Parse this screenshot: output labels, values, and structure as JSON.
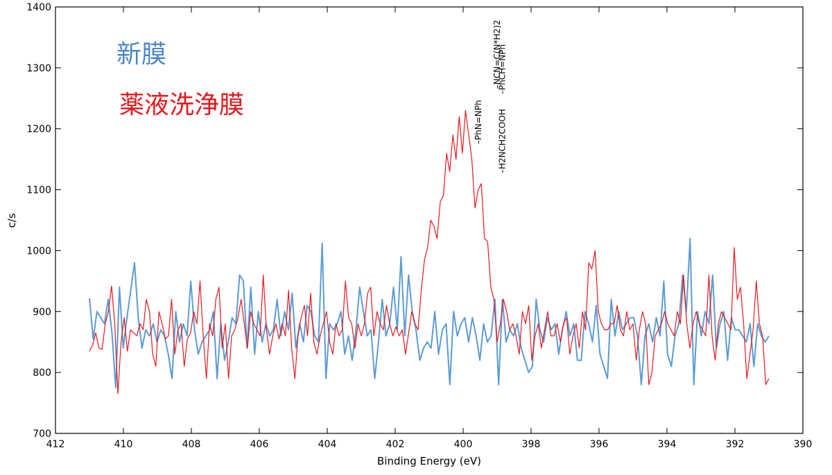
{
  "chart_data": {
    "type": "line",
    "title": "",
    "xlabel": "Binding Energy (eV)",
    "ylabel": "c/s",
    "xlim": [
      412,
      390
    ],
    "ylim": [
      700,
      1400
    ],
    "x_reversed": true,
    "xticks": [
      412,
      410,
      408,
      406,
      404,
      402,
      400,
      398,
      396,
      394,
      392,
      390
    ],
    "yticks": [
      700,
      800,
      900,
      1000,
      1100,
      1200,
      1300,
      1400
    ],
    "grid": false,
    "legend_placement": "top-left",
    "series": [
      {
        "name": "新膜",
        "color": "#5b9bd5",
        "x_start": 411,
        "x_end": 391,
        "values": [
          922,
          855,
          900,
          890,
          880,
          920,
          865,
          775,
          940,
          840,
          890,
          935,
          980,
          890,
          840,
          870,
          860,
          880,
          850,
          870,
          860,
          830,
          790,
          900,
          850,
          880,
          860,
          950,
          870,
          830,
          850,
          860,
          870,
          900,
          790,
          880,
          820,
          850,
          890,
          880,
          960,
          950,
          840,
          940,
          830,
          900,
          850,
          880,
          860,
          870,
          920,
          860,
          900,
          870,
          930,
          840,
          880,
          850,
          910,
          900,
          860,
          850,
          1012,
          790,
          880,
          870,
          880,
          900,
          830,
          860,
          820,
          870,
          940,
          900,
          860,
          870,
          790,
          850,
          920,
          860,
          880,
          940,
          870,
          990,
          860,
          960,
          900,
          870,
          820,
          840,
          850,
          840,
          900,
          830,
          870,
          880,
          780,
          900,
          860,
          880,
          890,
          850,
          890,
          860,
          820,
          880,
          850,
          860,
          920,
          780,
          920,
          850,
          870,
          860,
          880,
          840,
          820,
          800,
          810,
          920,
          870,
          850,
          890,
          870,
          880,
          830,
          870,
          900,
          860,
          880,
          820,
          820,
          900,
          880,
          850,
          910,
          830,
          810,
          790,
          920,
          860,
          900,
          870,
          880,
          890,
          890,
          860,
          780,
          860,
          880,
          850,
          890,
          860,
          950,
          830,
          810,
          860,
          880,
          960,
          900,
          1020,
          780,
          900,
          860,
          900,
          880,
          960,
          840,
          880,
          900,
          820,
          890,
          870,
          870,
          860,
          850,
          880,
          810,
          880,
          860,
          850,
          860
        ]
      },
      {
        "name": "薬液洗浄膜",
        "color": "#e8171c",
        "x_start": 411,
        "x_end": 391,
        "values": [
          835,
          845,
          865,
          840,
          838,
          880,
          900,
          942,
          880,
          765,
          850,
          890,
          835,
          870,
          865,
          860,
          880,
          870,
          920,
          900,
          830,
          810,
          900,
          880,
          855,
          860,
          920,
          830,
          870,
          880,
          810,
          855,
          865,
          900,
          880,
          950,
          860,
          790,
          880,
          860,
          920,
          940,
          840,
          880,
          790,
          860,
          870,
          890,
          920,
          880,
          840,
          900,
          880,
          870,
          860,
          960,
          870,
          830,
          860,
          880,
          855,
          880,
          860,
          935,
          840,
          790,
          860,
          890,
          910,
          860,
          930,
          850,
          830,
          860,
          880,
          900,
          850,
          830,
          880,
          860,
          870,
          950,
          890,
          880,
          840,
          880,
          860,
          880,
          930,
          940,
          860,
          900,
          880,
          870,
          910,
          880,
          860,
          875,
          860,
          870,
          830,
          865,
          900,
          880,
          870,
          935,
          985,
          1005,
          1050,
          1040,
          1020,
          1080,
          1090,
          1160,
          1130,
          1190,
          1150,
          1220,
          1160,
          1230,
          1190,
          1150,
          1070,
          1100,
          1110,
          1020,
          1015,
          940,
          920,
          850,
          880,
          920,
          900,
          870,
          880,
          860,
          830,
          900,
          880,
          910,
          820,
          860,
          880,
          840,
          870,
          900,
          860,
          860,
          880,
          850,
          880,
          890,
          830,
          860,
          880,
          840,
          900,
          870,
          980,
          970,
          1000,
          900,
          880,
          870,
          870,
          880,
          880,
          910,
          870,
          860,
          900,
          870,
          880,
          820,
          870,
          900,
          880,
          780,
          800,
          860,
          870,
          880,
          900,
          880,
          870,
          860,
          900,
          880,
          960,
          880,
          840,
          880,
          900,
          880,
          870,
          860,
          960,
          860,
          820,
          880,
          900,
          890,
          880,
          870,
          1005,
          920,
          940,
          880,
          790,
          830,
          870,
          950,
          880,
          860,
          780,
          790
        ]
      }
    ],
    "annotations": [
      {
        "text": "–PhN=NPh",
        "x": 399.55
      },
      {
        "text": "–NCN=C(N*H2)2",
        "x": 399.0
      },
      {
        "text": "–PhCH=NPh",
        "x": 398.6
      },
      {
        "text": "–H2NCH2COOH",
        "x": 398.6
      }
    ]
  }
}
